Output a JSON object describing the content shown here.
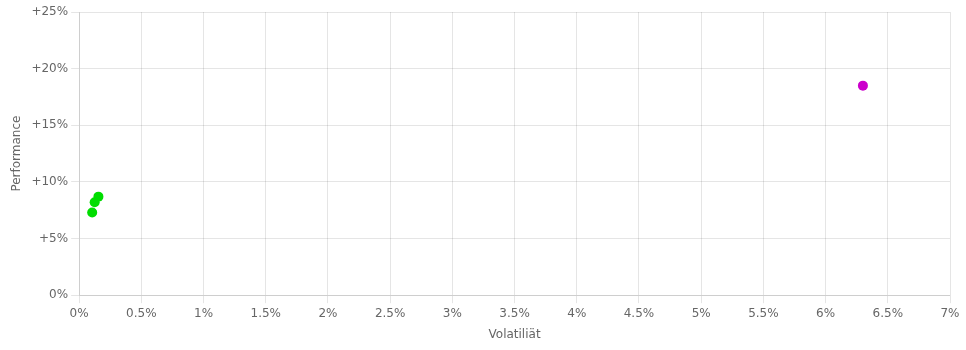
{
  "chart_data": {
    "type": "scatter",
    "xlabel": "Volatiliät",
    "ylabel": "Performance",
    "xlim": [
      0,
      0.07
    ],
    "ylim": [
      0,
      0.25
    ],
    "xticks": [
      {
        "value": 0.0,
        "label": "0%"
      },
      {
        "value": 0.005,
        "label": "0.5%"
      },
      {
        "value": 0.01,
        "label": "1%"
      },
      {
        "value": 0.015,
        "label": "1.5%"
      },
      {
        "value": 0.02,
        "label": "2%"
      },
      {
        "value": 0.025,
        "label": "2.5%"
      },
      {
        "value": 0.03,
        "label": "3%"
      },
      {
        "value": 0.035,
        "label": "3.5%"
      },
      {
        "value": 0.04,
        "label": "4%"
      },
      {
        "value": 0.045,
        "label": "4.5%"
      },
      {
        "value": 0.05,
        "label": "5%"
      },
      {
        "value": 0.055,
        "label": "5.5%"
      },
      {
        "value": 0.06,
        "label": "6%"
      },
      {
        "value": 0.065,
        "label": "6.5%"
      },
      {
        "value": 0.07,
        "label": "7%"
      }
    ],
    "yticks": [
      {
        "value": 0.0,
        "label": "0%"
      },
      {
        "value": 0.05,
        "label": "+5%"
      },
      {
        "value": 0.1,
        "label": "+10%"
      },
      {
        "value": 0.15,
        "label": "+15%"
      },
      {
        "value": 0.2,
        "label": "+20%"
      },
      {
        "value": 0.25,
        "label": "+25%"
      }
    ],
    "series": [
      {
        "color": "#00dd00",
        "x": [
          0.00125,
          0.00155,
          0.00105
        ],
        "values": [
          0.082,
          0.087,
          0.073
        ]
      },
      {
        "color": "#cc00cc",
        "x": [
          0.063
        ],
        "values": [
          0.185
        ]
      }
    ],
    "grid": true
  }
}
